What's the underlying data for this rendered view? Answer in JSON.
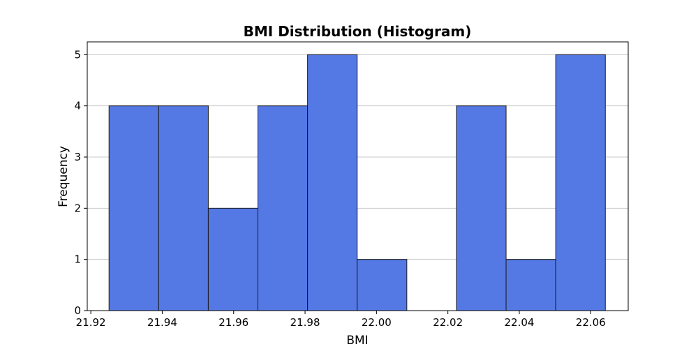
{
  "chart_data": {
    "type": "bar",
    "title": "BMI Distribution (Histogram)",
    "xlabel": "BMI",
    "ylabel": "Frequency",
    "bin_edges": [
      21.9251,
      21.939,
      21.9529,
      21.9668,
      21.9807,
      21.9946,
      22.0085,
      22.0224,
      22.0363,
      22.0502,
      22.0641
    ],
    "values": [
      4,
      4,
      2,
      4,
      5,
      1,
      0,
      4,
      1,
      5
    ],
    "xlim": [
      21.919,
      22.0705
    ],
    "ylim": [
      0,
      5.25
    ],
    "xticks": [
      21.92,
      21.94,
      21.96,
      21.98,
      22.0,
      22.02,
      22.04,
      22.06
    ],
    "xtick_labels": [
      "21.92",
      "21.94",
      "21.96",
      "21.98",
      "22.00",
      "22.02",
      "22.04",
      "22.06"
    ],
    "yticks": [
      0,
      1,
      2,
      3,
      4,
      5
    ],
    "ytick_labels": [
      "0",
      "1",
      "2",
      "3",
      "4",
      "5"
    ],
    "grid": "y",
    "bar_color": "#5479e5",
    "edge_color": "#1a1a1a"
  }
}
